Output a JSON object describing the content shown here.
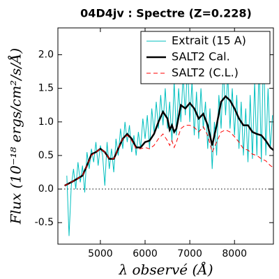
{
  "chart_data": {
    "type": "line",
    "title": "04D4jv : Spectre (Z=0.228)",
    "xlabel": "λ observé (Å)",
    "ylabel": "Flux (10⁻¹⁸ ergs/cm²/s/Å)",
    "xlim": [
      4050,
      8870
    ],
    "ylim": [
      -0.82,
      2.4
    ],
    "xticks": [
      5000,
      6000,
      7000,
      8000
    ],
    "yticks": [
      -0.5,
      {
        "value": 0,
        "label": "0.0"
      },
      0.5,
      {
        "value": 1,
        "label": "1.0"
      },
      1.5,
      {
        "value": 2,
        "label": "2.0"
      }
    ],
    "hline": 0,
    "legend": "upper right",
    "series": [
      {
        "name": "Extrait (15 A)",
        "color": "#00bfbf",
        "style": "solid",
        "x": [
          4250,
          4300,
          4350,
          4400,
          4450,
          4500,
          4550,
          4600,
          4650,
          4700,
          4750,
          4800,
          4850,
          4900,
          4950,
          5000,
          5050,
          5100,
          5150,
          5200,
          5250,
          5300,
          5350,
          5400,
          5450,
          5500,
          5550,
          5600,
          5650,
          5700,
          5750,
          5800,
          5850,
          5900,
          5950,
          6000,
          6050,
          6100,
          6150,
          6200,
          6250,
          6300,
          6350,
          6400,
          6450,
          6500,
          6550,
          6600,
          6650,
          6700,
          6750,
          6800,
          6850,
          6900,
          6950,
          7000,
          7050,
          7100,
          7150,
          7200,
          7250,
          7300,
          7350,
          7400,
          7450,
          7500,
          7550,
          7600,
          7650,
          7700,
          7750,
          7800,
          7850,
          7900,
          7950,
          8000,
          8050,
          8100,
          8150,
          8200,
          8250,
          8300,
          8350,
          8400,
          8450,
          8500,
          8550,
          8600,
          8650,
          8700,
          8750,
          8800,
          8850
        ],
        "values": [
          0.2,
          -0.7,
          0.05,
          0.3,
          0.0,
          0.4,
          0.1,
          0.35,
          -0.05,
          0.55,
          0.3,
          0.6,
          0.4,
          0.7,
          0.35,
          0.65,
          0.5,
          0.05,
          0.7,
          0.3,
          0.6,
          0.25,
          0.75,
          0.5,
          0.9,
          0.6,
          1.0,
          0.7,
          0.95,
          0.55,
          0.8,
          0.5,
          0.85,
          0.6,
          1.05,
          0.75,
          1.1,
          0.6,
          1.2,
          0.85,
          1.3,
          0.9,
          1.4,
          0.95,
          1.5,
          0.9,
          1.3,
          0.7,
          1.6,
          0.8,
          1.5,
          1.0,
          1.7,
          1.1,
          1.9,
          1.0,
          1.6,
          0.8,
          1.45,
          0.75,
          1.5,
          0.9,
          1.3,
          0.6,
          1.2,
          0.3,
          1.0,
          0.5,
          1.4,
          0.9,
          1.8,
          1.1,
          1.7,
          0.9,
          1.5,
          0.8,
          1.4,
          0.6,
          1.3,
          0.5,
          1.2,
          0.4,
          1.4,
          0.45,
          1.6,
          0.5,
          1.9,
          0.4,
          2.2,
          0.5,
          1.5,
          0.6,
          1.1
        ],
        "width": 1
      },
      {
        "name": "SALT2 Cal.",
        "color": "#000000",
        "style": "solid",
        "x": [
          4200,
          4400,
          4600,
          4700,
          4800,
          4900,
          5000,
          5100,
          5200,
          5300,
          5400,
          5500,
          5600,
          5700,
          5800,
          5900,
          6000,
          6100,
          6200,
          6300,
          6400,
          6500,
          6550,
          6600,
          6650,
          6700,
          6800,
          6900,
          7000,
          7100,
          7200,
          7300,
          7400,
          7500,
          7600,
          7700,
          7800,
          7900,
          8000,
          8100,
          8200,
          8300,
          8400,
          8500,
          8600,
          8700,
          8800,
          8870
        ],
        "values": [
          0.05,
          0.12,
          0.2,
          0.35,
          0.52,
          0.55,
          0.6,
          0.55,
          0.45,
          0.45,
          0.6,
          0.75,
          0.82,
          0.75,
          0.62,
          0.62,
          0.7,
          0.72,
          0.82,
          1.0,
          1.15,
          1.05,
          0.88,
          0.95,
          0.85,
          0.9,
          1.25,
          1.2,
          1.28,
          1.2,
          1.05,
          1.12,
          0.95,
          0.65,
          0.95,
          1.3,
          1.38,
          1.32,
          1.2,
          1.05,
          0.95,
          0.95,
          0.85,
          0.82,
          0.8,
          0.72,
          0.62,
          0.58
        ],
        "width": 2.5
      },
      {
        "name": "SALT2 (C.L.)",
        "color": "#ff0000",
        "style": "dashed",
        "x": [
          4200,
          4400,
          4600,
          4700,
          4800,
          4900,
          5000,
          5100,
          5200,
          5300,
          5400,
          5500,
          5600,
          5700,
          5800,
          5900,
          6000,
          6100,
          6200,
          6300,
          6400,
          6500,
          6550,
          6600,
          6650,
          6700,
          6800,
          6900,
          7000,
          7100,
          7200,
          7300,
          7400,
          7500,
          7600,
          7700,
          7800,
          7900,
          8000,
          8100,
          8200,
          8300,
          8400,
          8500,
          8600,
          8700,
          8800,
          8870
        ],
        "values": [
          0.05,
          0.12,
          0.2,
          0.35,
          0.5,
          0.55,
          0.6,
          0.55,
          0.45,
          0.45,
          0.6,
          0.75,
          0.8,
          0.72,
          0.6,
          0.6,
          0.62,
          0.6,
          0.65,
          0.75,
          0.82,
          0.72,
          0.65,
          0.72,
          0.62,
          0.7,
          0.9,
          0.95,
          0.95,
          0.92,
          0.85,
          0.93,
          0.8,
          0.55,
          0.7,
          0.85,
          0.88,
          0.85,
          0.78,
          0.7,
          0.6,
          0.58,
          0.52,
          0.5,
          0.45,
          0.42,
          0.35,
          0.32
        ],
        "width": 1
      }
    ]
  }
}
